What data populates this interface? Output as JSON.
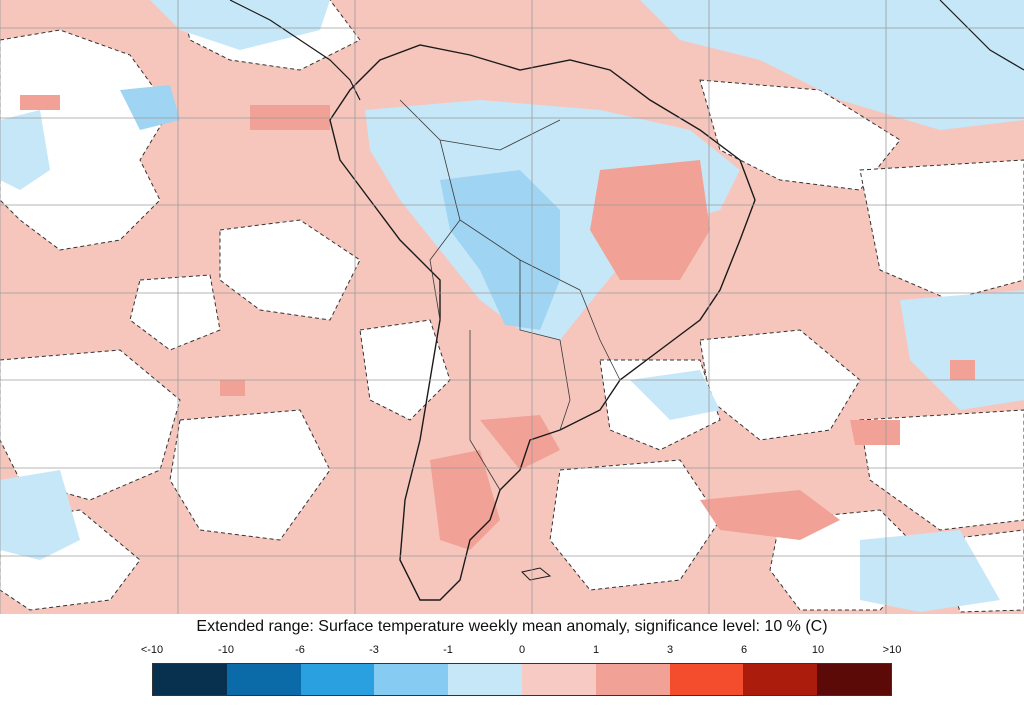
{
  "caption": "Extended range: Surface temperature weekly mean anomaly, significance level: 10 % (C)",
  "legend": {
    "labels": [
      "<-10",
      "-10",
      "-6",
      "-3",
      "-1",
      "0",
      "1",
      "3",
      "6",
      "10",
      ">10"
    ],
    "colors": [
      "#08314f",
      "#0b6aa8",
      "#2aa0e0",
      "#86cbf1",
      "#c6e7f8",
      "#f7cac4",
      "#f1a196",
      "#f34d2d",
      "#ab1c0c",
      "#5c0a08"
    ]
  },
  "map": {
    "region": "South America",
    "palette": {
      "ocean_anomaly": "#f6c6bd",
      "not_significant": "#ffffff",
      "cold_light": "#c6e7f8",
      "cold_medium": "#9fd4f2",
      "warm_medium": "#f1a196",
      "coastline": "#1a1a1a",
      "grid": "#9b9b9b"
    }
  }
}
